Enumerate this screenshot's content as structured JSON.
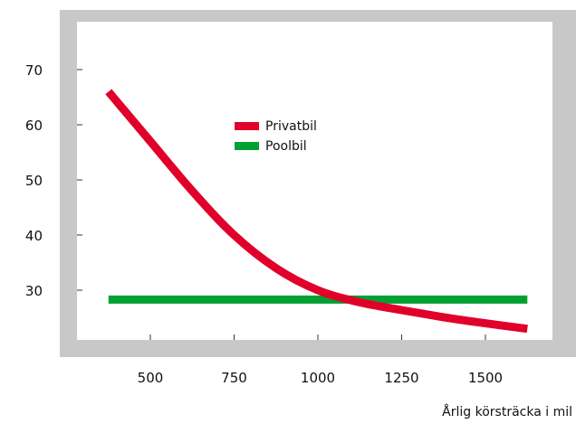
{
  "chart_data": {
    "type": "line",
    "title": "",
    "xlabel": "Årlig körsträcka i mil",
    "ylabel": "",
    "xlim": [
      250,
      1680
    ],
    "ylim": [
      17,
      83
    ],
    "xticks": [
      500,
      750,
      1000,
      1250,
      1500
    ],
    "yticks": [
      30,
      40,
      50,
      60,
      70
    ],
    "grid": false,
    "legend_position": "upper-left-center",
    "colors": {
      "frame": "#c8c8c8",
      "plot_background": "#ffffff",
      "page_background": "#ffffff",
      "text": "#111111"
    },
    "series": [
      {
        "name": "Privatbil",
        "color": "#e0002a",
        "x": [
          375,
          500,
          625,
          750,
          875,
          1000,
          1125,
          1250,
          1375,
          1500,
          1625
        ],
        "y": [
          66,
          57,
          48,
          40,
          34,
          30,
          27.8,
          26.4,
          25.1,
          24,
          23
        ]
      },
      {
        "name": "Poolbil",
        "color": "#00a032",
        "x": [
          375,
          1625
        ],
        "y": [
          28.3,
          28.3
        ]
      }
    ]
  }
}
